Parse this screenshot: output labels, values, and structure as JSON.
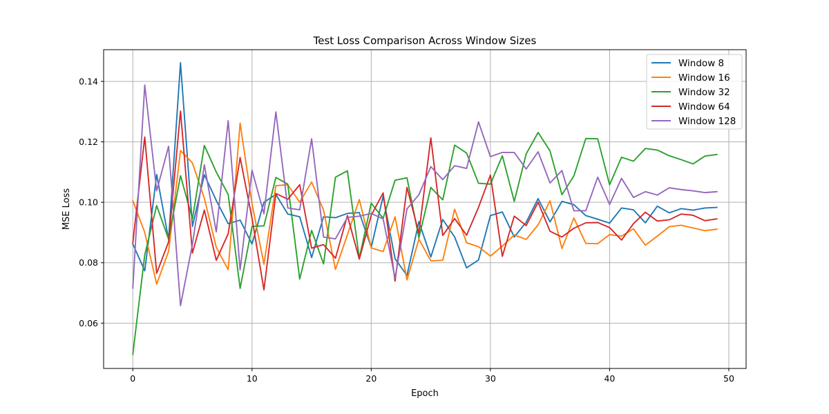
{
  "chart_data": {
    "type": "line",
    "title": "Test Loss Comparison Across Window Sizes",
    "xlabel": "Epoch",
    "ylabel": "MSE Loss",
    "xlim": [
      -2.45,
      51.45
    ],
    "ylim": [
      0.045,
      0.1505
    ],
    "xticks": [
      0,
      10,
      20,
      30,
      40,
      50
    ],
    "yticks": [
      0.06,
      0.08,
      0.1,
      0.12,
      0.14
    ],
    "ytick_labels": [
      "0.06",
      "0.08",
      "0.10",
      "0.12",
      "0.14"
    ],
    "grid": true,
    "legend_position": "top-right",
    "x": [
      0,
      1,
      2,
      3,
      4,
      5,
      6,
      7,
      8,
      9,
      10,
      11,
      12,
      13,
      14,
      15,
      16,
      17,
      18,
      19,
      20,
      21,
      22,
      23,
      24,
      25,
      26,
      27,
      28,
      29,
      30,
      31,
      32,
      33,
      34,
      35,
      36,
      37,
      38,
      39,
      40,
      41,
      42,
      43,
      44,
      45,
      46,
      47,
      48,
      49
    ],
    "series": [
      {
        "name": "Window 8",
        "color": "#1f77b4",
        "values": [
          0.0862,
          0.0773,
          0.1092,
          0.0877,
          0.1462,
          0.092,
          0.1091,
          0.1006,
          0.0929,
          0.0941,
          0.0862,
          0.1,
          0.1026,
          0.0961,
          0.0952,
          0.0817,
          0.0952,
          0.0949,
          0.0963,
          0.0966,
          0.0851,
          0.102,
          0.0813,
          0.0758,
          0.0936,
          0.0819,
          0.0943,
          0.0885,
          0.0783,
          0.0809,
          0.0956,
          0.0968,
          0.0885,
          0.0934,
          0.1012,
          0.0935,
          0.1003,
          0.0992,
          0.0956,
          0.0944,
          0.0931,
          0.0981,
          0.0975,
          0.0932,
          0.0987,
          0.0965,
          0.0979,
          0.0974,
          0.0981,
          0.0983
        ]
      },
      {
        "name": "Window 16",
        "color": "#ff7f0e",
        "values": [
          0.1005,
          0.09,
          0.0729,
          0.0838,
          0.1171,
          0.113,
          0.1013,
          0.0851,
          0.0777,
          0.1262,
          0.0995,
          0.0795,
          0.1055,
          0.1058,
          0.1,
          0.1067,
          0.0974,
          0.0778,
          0.0892,
          0.1009,
          0.0849,
          0.0837,
          0.0952,
          0.0743,
          0.0878,
          0.0806,
          0.0808,
          0.0977,
          0.0866,
          0.0853,
          0.0822,
          0.0855,
          0.0892,
          0.0877,
          0.0925,
          0.1005,
          0.0847,
          0.0948,
          0.0864,
          0.0863,
          0.0893,
          0.0888,
          0.0912,
          0.0858,
          0.0888,
          0.0919,
          0.0924,
          0.0915,
          0.0906,
          0.0911
        ]
      },
      {
        "name": "Window 32",
        "color": "#2ca02c",
        "values": [
          0.0497,
          0.0826,
          0.0989,
          0.0878,
          0.1088,
          0.0945,
          0.1188,
          0.11,
          0.1026,
          0.0715,
          0.092,
          0.0922,
          0.1082,
          0.106,
          0.0746,
          0.0907,
          0.0796,
          0.1083,
          0.1104,
          0.0815,
          0.0997,
          0.0947,
          0.1073,
          0.1081,
          0.0882,
          0.1049,
          0.1008,
          0.1189,
          0.1163,
          0.1063,
          0.106,
          0.1154,
          0.1003,
          0.116,
          0.1231,
          0.117,
          0.1025,
          0.1087,
          0.1211,
          0.121,
          0.1058,
          0.1149,
          0.1136,
          0.1178,
          0.1173,
          0.1154,
          0.1141,
          0.1127,
          0.1153,
          0.1158
        ]
      },
      {
        "name": "Window 64",
        "color": "#d62728",
        "values": [
          0.0866,
          0.1216,
          0.0765,
          0.0869,
          0.1302,
          0.0832,
          0.0974,
          0.0808,
          0.0896,
          0.1148,
          0.0947,
          0.071,
          0.1029,
          0.101,
          0.1058,
          0.0848,
          0.086,
          0.0815,
          0.0956,
          0.0812,
          0.0957,
          0.1031,
          0.0739,
          0.1049,
          0.0898,
          0.1213,
          0.089,
          0.0946,
          0.0891,
          0.0983,
          0.109,
          0.0821,
          0.0954,
          0.0923,
          0.1,
          0.0904,
          0.0885,
          0.0914,
          0.0932,
          0.0933,
          0.0916,
          0.0875,
          0.0929,
          0.0967,
          0.0938,
          0.0942,
          0.0961,
          0.0957,
          0.0939,
          0.0945
        ]
      },
      {
        "name": "Window 128",
        "color": "#9467bd",
        "values": [
          0.0716,
          0.1388,
          0.1038,
          0.1185,
          0.0658,
          0.0861,
          0.1124,
          0.0902,
          0.127,
          0.0776,
          0.1106,
          0.0962,
          0.1299,
          0.0981,
          0.0975,
          0.121,
          0.0885,
          0.0879,
          0.095,
          0.0954,
          0.0963,
          0.0945,
          0.0749,
          0.0978,
          0.1025,
          0.1118,
          0.1075,
          0.1121,
          0.1112,
          0.1266,
          0.1151,
          0.1165,
          0.1165,
          0.111,
          0.1167,
          0.1064,
          0.1105,
          0.0972,
          0.0972,
          0.1083,
          0.0993,
          0.1079,
          0.1016,
          0.1035,
          0.1024,
          0.1048,
          0.1042,
          0.1038,
          0.1032,
          0.1035
        ]
      }
    ]
  }
}
